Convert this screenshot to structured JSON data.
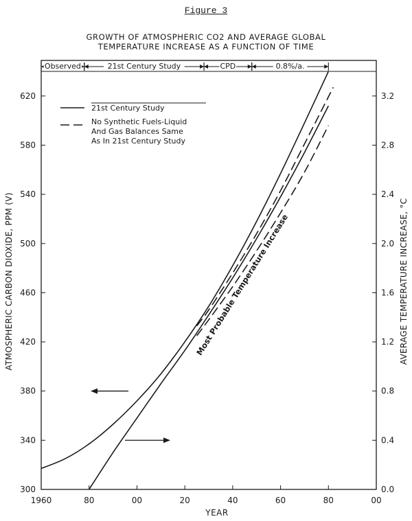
{
  "figure_label": "Figure 3",
  "chart_data": {
    "type": "line",
    "title": "GROWTH OF ATMOSPHERIC CO2 AND AVERAGE GLOBAL TEMPERATURE INCREASE AS A FUNCTION OF TIME",
    "title_line1": "GROWTH OF ATMOSPHERIC CO2 AND AVERAGE GLOBAL",
    "title_line2": "TEMPERATURE INCREASE AS A FUNCTION OF TIME",
    "xlabel": "YEAR",
    "ylabel_left": "ATMOSPHERIC CARBON DIOXIDE, PPM (V)",
    "ylabel_right": "AVERAGE TEMPERATURE INCREASE, °C",
    "xlim": [
      1960,
      2100
    ],
    "ylim_left": [
      300,
      640
    ],
    "ylim_right": [
      0,
      3.4
    ],
    "x_tick_values": [
      1960,
      1980,
      2000,
      2020,
      2040,
      2060,
      2080,
      2100
    ],
    "x_tick_labels": [
      "1960",
      "80",
      "00",
      "20",
      "40",
      "60",
      "80",
      "00"
    ],
    "y_left_ticks": [
      300,
      340,
      380,
      420,
      460,
      500,
      540,
      580,
      620
    ],
    "y_right_ticks": [
      0,
      0.4,
      0.8,
      1.2,
      1.6,
      2.0,
      2.4,
      2.8,
      3.2
    ],
    "periods": [
      {
        "label": "Observed",
        "start": 1960,
        "end": 1978
      },
      {
        "label": "21st Century Study",
        "start": 1978,
        "end": 2028
      },
      {
        "label": "CPD",
        "start": 2028,
        "end": 2048
      },
      {
        "label": "0.8%/a.",
        "start": 2048,
        "end": 2080
      }
    ],
    "legend": [
      {
        "label": "21st Century Study",
        "style": "solid"
      },
      {
        "label": "No Synthetic Fuels-Liquid And Gas Balances Same As In 21st Century Study",
        "style": "dashed"
      }
    ],
    "legend_lines": [
      "No Synthetic Fuels-Liquid",
      "And Gas Balances Same",
      "As In 21st Century Study"
    ],
    "annotation": "Most Probable Temperature Increase",
    "series": [
      {
        "name": "CO2, 21st Century Study",
        "axis": "left",
        "style": "solid",
        "x": [
          1960,
          1970,
          1980,
          1990,
          2000,
          2010,
          2020,
          2030,
          2040,
          2050,
          2060,
          2070,
          2080
        ],
        "y": [
          317,
          325,
          337,
          353,
          372,
          394,
          420,
          449,
          482,
          518,
          557,
          598,
          640
        ]
      },
      {
        "name": "CO2, No Synthetic Fuels",
        "axis": "left",
        "style": "dashed",
        "x": [
          2025,
          2030,
          2040,
          2050,
          2060,
          2070,
          2082
        ],
        "y": [
          433,
          446,
          476,
          508,
          543,
          581,
          627
        ]
      },
      {
        "name": "Temperature, 21st Century Study",
        "axis": "right",
        "style": "solid",
        "x": [
          1980,
          1990,
          2000,
          2010,
          2020,
          2030,
          2040,
          2050,
          2060,
          2070,
          2080
        ],
        "y": [
          0,
          0.3,
          0.58,
          0.86,
          1.13,
          1.42,
          1.72,
          2.04,
          2.38,
          2.74,
          3.12
        ]
      },
      {
        "name": "Temperature, No Synthetic Fuels",
        "axis": "right",
        "style": "dashed",
        "x": [
          2025,
          2030,
          2040,
          2050,
          2060,
          2070,
          2080
        ],
        "y": [
          1.25,
          1.38,
          1.65,
          1.94,
          2.25,
          2.58,
          2.96
        ]
      }
    ],
    "arrows": [
      {
        "points_to": "left",
        "at_year": 1995,
        "at_value": 380
      },
      {
        "points_to": "right",
        "at_year": 1995,
        "at_value": 340
      }
    ]
  }
}
